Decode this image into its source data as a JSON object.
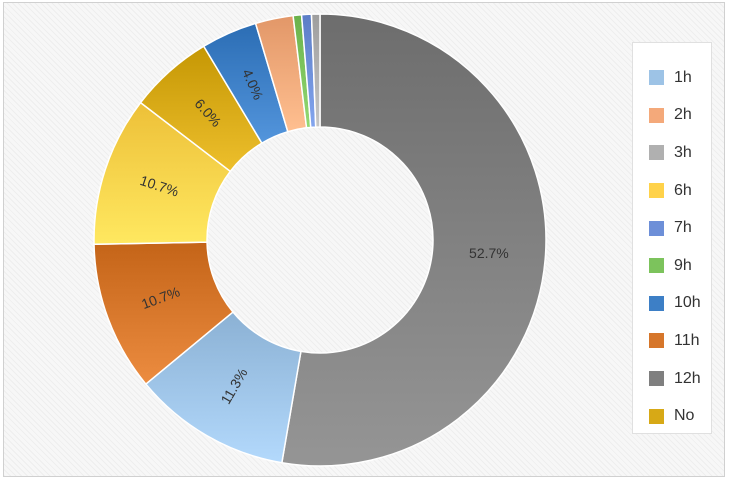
{
  "chart_data": {
    "type": "pie",
    "variant": "donut",
    "categories": [
      "1h",
      "2h",
      "3h",
      "6h",
      "7h",
      "9h",
      "10h",
      "11h",
      "12h",
      "No"
    ],
    "slices": [
      {
        "name": "12h",
        "value": 52.7,
        "label": "52.7%",
        "color": "#7f7f7f"
      },
      {
        "name": "1h",
        "value": 11.3,
        "label": "11.3%",
        "color": "#9dc3e6"
      },
      {
        "name": "11h",
        "value": 10.7,
        "label": "10.7%",
        "color": "#d6762a"
      },
      {
        "name": "6h",
        "value": 10.7,
        "label": "10.7%",
        "color": "#ffd24a"
      },
      {
        "name": "No",
        "value": 6.0,
        "label": "6.0%",
        "color": "#d7a916"
      },
      {
        "name": "10h",
        "value": 4.0,
        "label": "4.0%",
        "color": "#3d7fc6"
      },
      {
        "name": "2h",
        "value": 2.7,
        "label": "",
        "color": "#f4a97a"
      },
      {
        "name": "9h",
        "value": 0.6,
        "label": "",
        "color": "#7cc35c"
      },
      {
        "name": "7h",
        "value": 0.7,
        "label": "",
        "color": "#6d8fd8"
      },
      {
        "name": "3h",
        "value": 0.6,
        "label": "",
        "color": "#b0b0b0"
      }
    ],
    "legend": {
      "position": "right",
      "items": [
        {
          "label": "1h",
          "color": "#9dc3e6"
        },
        {
          "label": "2h",
          "color": "#f4a97a"
        },
        {
          "label": "3h",
          "color": "#b0b0b0"
        },
        {
          "label": "6h",
          "color": "#ffd24a"
        },
        {
          "label": "7h",
          "color": "#6d8fd8"
        },
        {
          "label": "9h",
          "color": "#7cc35c"
        },
        {
          "label": "10h",
          "color": "#3d7fc6"
        },
        {
          "label": "11h",
          "color": "#d6762a"
        },
        {
          "label": "12h",
          "color": "#7f7f7f"
        },
        {
          "label": "No",
          "color": "#d7a916"
        }
      ]
    }
  }
}
